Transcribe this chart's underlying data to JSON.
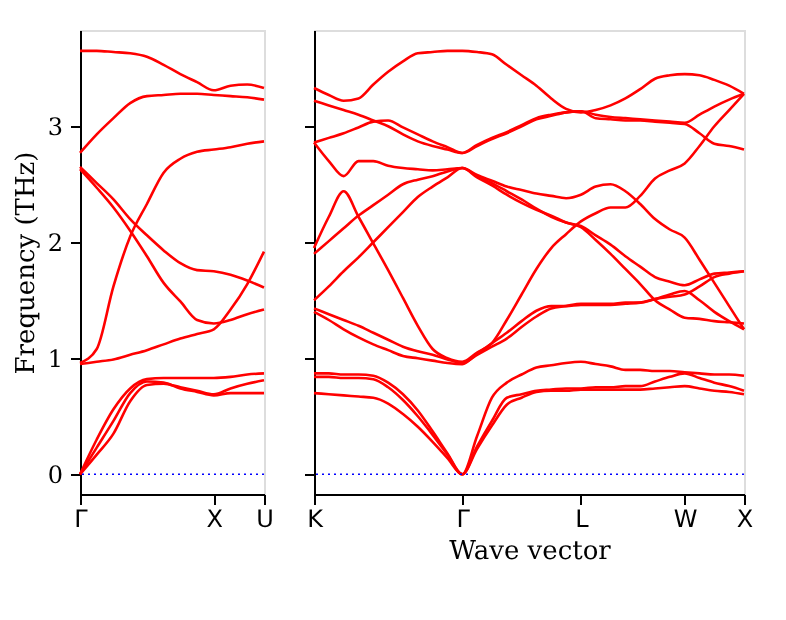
{
  "chart_data": [
    {
      "type": "line",
      "ylabel": "Frequency (THz)",
      "categories": [
        "Γ",
        null,
        null,
        null,
        null,
        null,
        null,
        null,
        "X",
        null,
        null,
        "U"
      ],
      "ylim": [
        -0.17,
        3.83
      ],
      "yticks": [
        0,
        1,
        2,
        3
      ],
      "grid": false,
      "legend": false,
      "marker": "none",
      "line_style": "solid",
      "ref_lines": [
        {
          "axis": "y",
          "value": 0,
          "color": "#0000ff",
          "line_style": "dotted"
        }
      ],
      "series": [
        {
          "color": "#ff0000",
          "values": [
            3.65,
            3.65,
            3.64,
            3.63,
            3.6,
            3.53,
            3.45,
            3.38,
            3.31,
            3.35,
            3.36,
            3.33
          ]
        },
        {
          "color": "#ff0000",
          "values": [
            2.77,
            2.93,
            3.07,
            3.2,
            3.26,
            3.27,
            3.28,
            3.28,
            3.27,
            3.26,
            3.25,
            3.23
          ]
        },
        {
          "color": "#ff0000",
          "values": [
            0.96,
            1.08,
            1.62,
            2.05,
            2.33,
            2.6,
            2.72,
            2.78,
            2.8,
            2.82,
            2.85,
            2.87
          ]
        },
        {
          "color": "#ff0000",
          "values": [
            2.65,
            2.51,
            2.37,
            2.2,
            2.06,
            1.93,
            1.82,
            1.76,
            1.75,
            1.72,
            1.67,
            1.61
          ]
        },
        {
          "color": "#ff0000",
          "values": [
            2.63,
            2.47,
            2.3,
            2.1,
            1.88,
            1.65,
            1.49,
            1.33,
            1.3,
            1.33,
            1.38,
            1.42
          ]
        },
        {
          "color": "#ff0000",
          "values": [
            0.95,
            0.97,
            0.99,
            1.03,
            1.07,
            1.12,
            1.17,
            1.21,
            1.25,
            1.42,
            1.64,
            1.92
          ]
        },
        {
          "color": "#ff0000",
          "values": [
            0,
            0.3,
            0.56,
            0.74,
            0.82,
            0.83,
            0.83,
            0.83,
            0.83,
            0.84,
            0.86,
            0.87
          ]
        },
        {
          "color": "#ff0000",
          "values": [
            0,
            0.23,
            0.46,
            0.7,
            0.8,
            0.79,
            0.74,
            0.71,
            0.68,
            0.7,
            0.7,
            0.7
          ]
        },
        {
          "color": "#ff0000",
          "values": [
            0,
            0.17,
            0.35,
            0.63,
            0.77,
            0.78,
            0.75,
            0.72,
            0.69,
            0.74,
            0.78,
            0.81
          ]
        }
      ]
    },
    {
      "type": "line",
      "xlabel": "Wave vector",
      "categories": [
        "K",
        null,
        null,
        null,
        null,
        null,
        null,
        null,
        null,
        null,
        "Γ",
        null,
        null,
        null,
        null,
        null,
        null,
        null,
        "L",
        null,
        null,
        null,
        null,
        null,
        null,
        "W",
        null,
        null,
        null,
        "X"
      ],
      "ylim": [
        -0.17,
        3.83
      ],
      "yticks": [
        0,
        1,
        2,
        3
      ],
      "tick_labels": "x",
      "grid": false,
      "legend": false,
      "marker": "none",
      "line_style": "solid",
      "ref_lines": [
        {
          "axis": "y",
          "value": 0,
          "color": "#0000ff",
          "line_style": "dotted"
        }
      ],
      "series": [
        {
          "color": "#ff0000",
          "values": [
            3.33,
            3.27,
            3.22,
            3.24,
            3.36,
            3.47,
            3.56,
            3.63,
            3.64,
            3.65,
            3.65,
            3.64,
            3.62,
            3.53,
            3.44,
            3.35,
            3.24,
            3.15,
            3.12,
            3.14,
            3.18,
            3.24,
            3.32,
            3.41,
            3.44,
            3.45,
            3.44,
            3.4,
            3.35,
            3.28
          ]
        },
        {
          "color": "#ff0000",
          "values": [
            3.22,
            3.18,
            3.14,
            3.1,
            3.05,
            3.0,
            2.93,
            2.87,
            2.83,
            2.8,
            2.77,
            2.84,
            2.9,
            2.95,
            3.01,
            3.07,
            3.1,
            3.12,
            3.13,
            3.1,
            3.08,
            3.07,
            3.06,
            3.05,
            3.04,
            3.03,
            3.1,
            3.17,
            3.23,
            3.28
          ]
        },
        {
          "color": "#ff0000",
          "values": [
            2.86,
            2.9,
            2.94,
            2.99,
            3.04,
            3.05,
            2.99,
            2.93,
            2.87,
            2.82,
            2.77,
            2.83,
            2.89,
            2.94,
            3.0,
            3.06,
            3.09,
            3.12,
            3.13,
            3.07,
            3.06,
            3.05,
            3.05,
            3.04,
            3.03,
            3.02,
            2.94,
            2.85,
            2.83,
            2.8
          ]
        },
        {
          "color": "#ff0000",
          "values": [
            2.86,
            2.7,
            2.57,
            2.7,
            2.7,
            2.66,
            2.64,
            2.63,
            2.62,
            2.63,
            2.64,
            2.58,
            2.53,
            2.48,
            2.45,
            2.42,
            2.4,
            2.38,
            2.41,
            2.48,
            2.5,
            2.44,
            2.33,
            2.2,
            2.11,
            2.04,
            1.85,
            1.65,
            1.45,
            1.25
          ]
        },
        {
          "color": "#ff0000",
          "values": [
            1.9,
            2.01,
            2.12,
            2.23,
            2.32,
            2.41,
            2.5,
            2.54,
            2.57,
            2.61,
            2.64,
            2.57,
            2.51,
            2.44,
            2.37,
            2.29,
            2.22,
            2.17,
            2.14,
            2.06,
            1.98,
            1.88,
            1.79,
            1.7,
            1.66,
            1.63,
            1.68,
            1.73,
            1.74,
            1.75
          ]
        },
        {
          "color": "#ff0000",
          "values": [
            1.5,
            1.62,
            1.75,
            1.87,
            2.0,
            2.13,
            2.26,
            2.39,
            2.48,
            2.56,
            2.64,
            2.56,
            2.49,
            2.41,
            2.34,
            2.28,
            2.23,
            2.17,
            2.13,
            2.02,
            1.9,
            1.77,
            1.64,
            1.5,
            1.42,
            1.35,
            1.34,
            1.32,
            1.31,
            1.3
          ]
        },
        {
          "color": "#ff0000",
          "values": [
            1.95,
            2.22,
            2.44,
            2.22,
            1.99,
            1.76,
            1.52,
            1.28,
            1.08,
            1.0,
            0.97,
            1.05,
            1.13,
            1.33,
            1.55,
            1.77,
            1.95,
            2.07,
            2.18,
            2.25,
            2.3,
            2.3,
            2.4,
            2.55,
            2.62,
            2.68,
            2.83,
            3.0,
            3.14,
            3.28
          ]
        },
        {
          "color": "#ff0000",
          "values": [
            1.43,
            1.38,
            1.33,
            1.28,
            1.22,
            1.16,
            1.1,
            1.06,
            1.03,
            0.99,
            0.96,
            1.03,
            1.1,
            1.17,
            1.27,
            1.36,
            1.43,
            1.45,
            1.47,
            1.47,
            1.47,
            1.48,
            1.48,
            1.51,
            1.53,
            1.55,
            1.62,
            1.7,
            1.73,
            1.75
          ]
        },
        {
          "color": "#ff0000",
          "values": [
            1.4,
            1.33,
            1.25,
            1.18,
            1.12,
            1.07,
            1.02,
            1.0,
            0.98,
            0.96,
            0.95,
            1.04,
            1.13,
            1.22,
            1.32,
            1.41,
            1.45,
            1.45,
            1.46,
            1.46,
            1.46,
            1.47,
            1.48,
            1.51,
            1.55,
            1.58,
            1.5,
            1.4,
            1.32,
            1.25
          ]
        },
        {
          "color": "#ff0000",
          "values": [
            0.87,
            0.87,
            0.86,
            0.86,
            0.85,
            0.79,
            0.69,
            0.55,
            0.37,
            0.18,
            0,
            0.33,
            0.66,
            0.79,
            0.86,
            0.92,
            0.94,
            0.96,
            0.97,
            0.95,
            0.93,
            0.9,
            0.9,
            0.89,
            0.89,
            0.88,
            0.87,
            0.86,
            0.86,
            0.85
          ]
        },
        {
          "color": "#ff0000",
          "values": [
            0.84,
            0.84,
            0.83,
            0.83,
            0.82,
            0.75,
            0.64,
            0.5,
            0.34,
            0.17,
            0,
            0.24,
            0.46,
            0.66,
            0.69,
            0.72,
            0.73,
            0.74,
            0.74,
            0.75,
            0.75,
            0.76,
            0.76,
            0.8,
            0.84,
            0.87,
            0.83,
            0.79,
            0.76,
            0.72
          ]
        },
        {
          "color": "#ff0000",
          "values": [
            0.7,
            0.69,
            0.68,
            0.67,
            0.66,
            0.61,
            0.52,
            0.41,
            0.28,
            0.14,
            0,
            0.22,
            0.42,
            0.6,
            0.66,
            0.71,
            0.72,
            0.72,
            0.73,
            0.73,
            0.73,
            0.73,
            0.73,
            0.74,
            0.75,
            0.76,
            0.74,
            0.72,
            0.71,
            0.69
          ]
        }
      ]
    }
  ]
}
